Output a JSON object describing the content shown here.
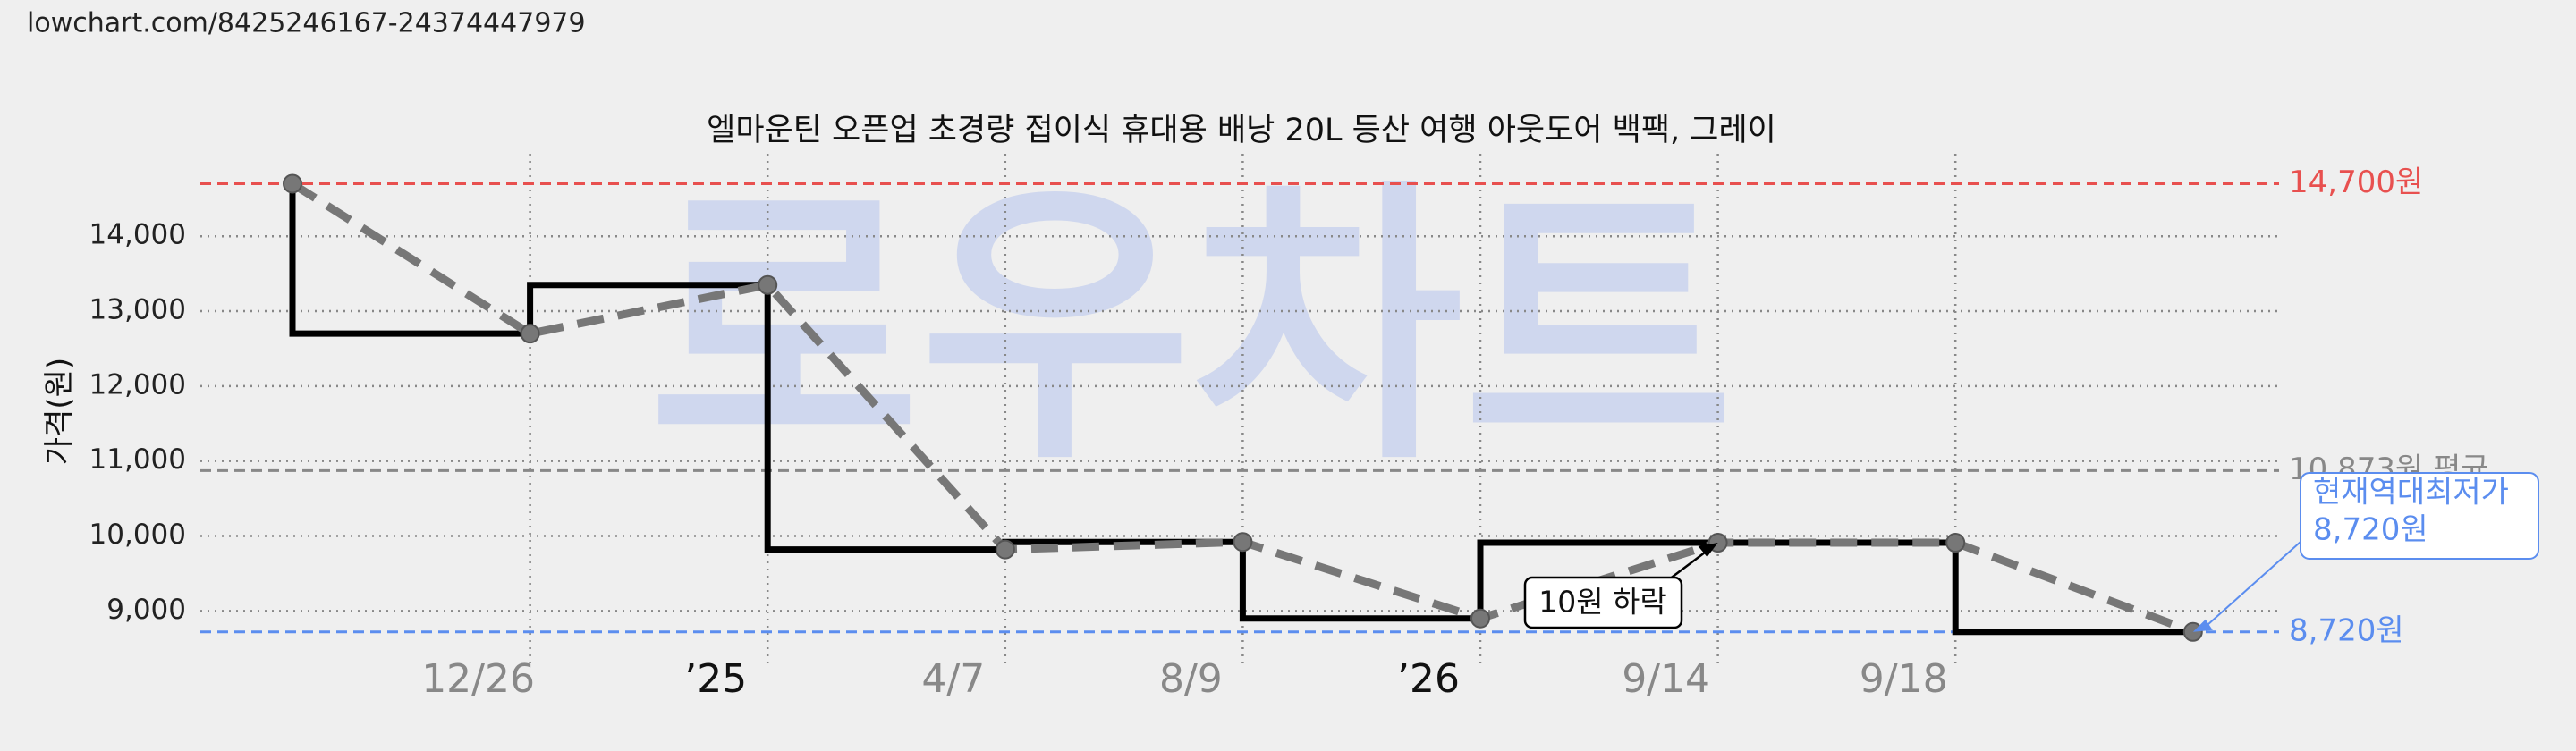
{
  "header": {
    "url": "lowchart.com/8425246167-24374447979"
  },
  "chart_data": {
    "type": "line",
    "title": "엘마운틴 오픈업 초경량 접이식 휴대용 배낭 20L 등산 여행 아웃도어 백팩, 그레이",
    "watermark": "로우차트",
    "y_label": "가격(원)",
    "categories": [
      null,
      "12/26",
      "’25",
      "4/7",
      "8/9",
      "’26",
      "9/14",
      "9/18",
      null
    ],
    "series": [
      {
        "name": "가격",
        "color": "#777777",
        "values": [
          14700,
          12700,
          13350,
          9820,
          9920,
          8900,
          9910,
          9910,
          8720
        ]
      }
    ],
    "step_color": "#000000",
    "ylim": [
      8300,
      15100
    ],
    "yticks": [
      {
        "value": 9000,
        "label": "9,000"
      },
      {
        "value": 10000,
        "label": "10,000"
      },
      {
        "value": 11000,
        "label": "11,000"
      },
      {
        "value": 12000,
        "label": "12,000"
      },
      {
        "value": 13000,
        "label": "13,000"
      },
      {
        "value": 14000,
        "label": "14,000"
      }
    ],
    "grid": true,
    "ref_lines": [
      {
        "value": 14700,
        "label": "14,700원",
        "color": "#e8504f"
      },
      {
        "value": 10873,
        "label": "10,873원 평균",
        "color": "#888888"
      },
      {
        "value": 8720,
        "label": "8,720원",
        "color": "#5b8def"
      }
    ],
    "annotations": [
      {
        "text": "10원 하락"
      },
      {
        "lines": [
          "현재역대최저가",
          "8,720원"
        ],
        "color": "#5b8def"
      }
    ]
  }
}
